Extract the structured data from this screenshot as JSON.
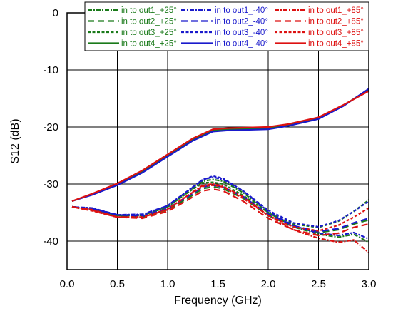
{
  "chart_data": {
    "type": "line",
    "title": "",
    "xlabel": "Frequency (GHz)",
    "ylabel": "S12 (dB)",
    "xlim": [
      0,
      3
    ],
    "ylim": [
      -45,
      0
    ],
    "x_ticks": [
      0,
      0.5,
      1,
      1.5,
      2,
      2.5,
      3
    ],
    "x_tick_labels": [
      "0.0",
      "0.5",
      "1.0",
      "1.5",
      "2.0",
      "2.5",
      "3.0"
    ],
    "y_ticks": [
      0,
      -10,
      -20,
      -30,
      -40
    ],
    "y_tick_labels": [
      "0",
      "-10",
      "-20",
      "-30",
      "-40"
    ],
    "grid": true,
    "legend_position": "top-right",
    "series": [
      {
        "name": "in to out1_+25°",
        "color": "#1a7a1a",
        "dash": "dot-dash",
        "x": [
          0.05,
          0.25,
          0.5,
          0.75,
          1.0,
          1.2,
          1.35,
          1.45,
          1.55,
          1.75,
          2.0,
          2.25,
          2.5,
          2.7,
          2.85,
          3.0
        ],
        "y": [
          -34,
          -34.3,
          -35.5,
          -35.5,
          -34,
          -31.5,
          -29.5,
          -29.2,
          -29.5,
          -31.5,
          -35,
          -37.5,
          -38.8,
          -39.3,
          -38.8,
          -40.2
        ]
      },
      {
        "name": "in to out2_+25°",
        "color": "#1a7a1a",
        "dash": "long-dash",
        "x": [
          0.05,
          0.25,
          0.5,
          0.75,
          1.0,
          1.2,
          1.35,
          1.45,
          1.55,
          1.75,
          2.0,
          2.25,
          2.5,
          2.7,
          2.85,
          3.0
        ],
        "y": [
          -34,
          -34.4,
          -35.5,
          -35.8,
          -34.5,
          -32.5,
          -30.8,
          -30.5,
          -30.8,
          -32.5,
          -35.5,
          -37.5,
          -38.5,
          -38,
          -37,
          -36.3
        ]
      },
      {
        "name": "in to out3_+25°",
        "color": "#1a7a1a",
        "dash": "dash",
        "x": [
          0.05,
          0.25,
          0.5,
          0.75,
          1.0,
          1.2,
          1.35,
          1.45,
          1.55,
          1.75,
          2.0,
          2.25,
          2.5,
          2.7,
          2.85,
          3.0
        ],
        "y": [
          -34,
          -34.5,
          -35.5,
          -35.5,
          -34,
          -31.5,
          -29.8,
          -29.7,
          -30,
          -32,
          -35,
          -37,
          -37.6,
          -36.5,
          -34.8,
          -32.8
        ]
      },
      {
        "name": "in to out4_+25°",
        "color": "#1a7a1a",
        "dash": "solid",
        "x": [
          0.05,
          0.25,
          0.5,
          0.75,
          1.0,
          1.25,
          1.45,
          1.6,
          2.0,
          2.2,
          2.5,
          2.75,
          3.0
        ],
        "y": [
          -33,
          -31.8,
          -30,
          -27.8,
          -25,
          -22.2,
          -20.6,
          -20.4,
          -20.2,
          -19.6,
          -18.5,
          -16.2,
          -13.4
        ]
      },
      {
        "name": "in to out1_-40°",
        "color": "#1a1acc",
        "dash": "dot-dash",
        "x": [
          0.05,
          0.25,
          0.5,
          0.75,
          1.0,
          1.2,
          1.35,
          1.45,
          1.55,
          1.75,
          2.0,
          2.25,
          2.5,
          2.7,
          2.85,
          3.0
        ],
        "y": [
          -34,
          -34.2,
          -35.4,
          -35.3,
          -33.8,
          -31.2,
          -29.2,
          -28.8,
          -29.2,
          -31.2,
          -34.8,
          -37.3,
          -38.6,
          -39,
          -38.5,
          -39.6
        ]
      },
      {
        "name": "in to out2_-40°",
        "color": "#1a1acc",
        "dash": "long-dash",
        "x": [
          0.05,
          0.25,
          0.5,
          0.75,
          1.0,
          1.2,
          1.35,
          1.45,
          1.55,
          1.75,
          2.0,
          2.25,
          2.5,
          2.7,
          2.85,
          3.0
        ],
        "y": [
          -34,
          -34.3,
          -35.4,
          -35.6,
          -34.3,
          -32.2,
          -30.5,
          -30.2,
          -30.5,
          -32.2,
          -35.3,
          -37.3,
          -38.3,
          -37.8,
          -36.8,
          -36
        ]
      },
      {
        "name": "in to out3_-40°",
        "color": "#1a1acc",
        "dash": "dash",
        "x": [
          0.05,
          0.25,
          0.5,
          0.75,
          1.0,
          1.2,
          1.35,
          1.45,
          1.55,
          1.75,
          2.0,
          2.25,
          2.5,
          2.7,
          2.85,
          3.0
        ],
        "y": [
          -34,
          -34.4,
          -35.4,
          -35.4,
          -33.8,
          -31.2,
          -29.3,
          -28.6,
          -29,
          -31.2,
          -34.6,
          -36.8,
          -37.5,
          -36.4,
          -34.8,
          -33
        ]
      },
      {
        "name": "in to out4_-40°",
        "color": "#1a1acc",
        "dash": "solid",
        "x": [
          0.05,
          0.25,
          0.5,
          0.75,
          1.0,
          1.25,
          1.45,
          1.6,
          2.0,
          2.2,
          2.5,
          2.75,
          3.0
        ],
        "y": [
          -33,
          -31.9,
          -30.2,
          -28,
          -25.2,
          -22.4,
          -20.8,
          -20.6,
          -20.4,
          -19.8,
          -18.6,
          -16.3,
          -13.3
        ]
      },
      {
        "name": "in to out1_+85°",
        "color": "#dd1111",
        "dash": "dot-dash",
        "x": [
          0.05,
          0.25,
          0.5,
          0.75,
          1.0,
          1.2,
          1.35,
          1.45,
          1.55,
          1.75,
          2.0,
          2.25,
          2.5,
          2.7,
          2.85,
          3.0
        ],
        "y": [
          -34,
          -34.5,
          -35.8,
          -35.8,
          -34.5,
          -32,
          -30.2,
          -30,
          -30.4,
          -32.2,
          -35.5,
          -38,
          -39.5,
          -40.2,
          -39.8,
          -42
        ]
      },
      {
        "name": "in to out2_+85°",
        "color": "#dd1111",
        "dash": "long-dash",
        "x": [
          0.05,
          0.25,
          0.5,
          0.75,
          1.0,
          1.2,
          1.35,
          1.45,
          1.55,
          1.75,
          2.0,
          2.25,
          2.5,
          2.7,
          2.85,
          3.0
        ],
        "y": [
          -34,
          -34.6,
          -35.8,
          -36,
          -34.8,
          -32.8,
          -31.2,
          -30.9,
          -31.2,
          -33,
          -36,
          -38,
          -39,
          -38.6,
          -37.6,
          -37
        ]
      },
      {
        "name": "in to out3_+85°",
        "color": "#dd1111",
        "dash": "dash",
        "x": [
          0.05,
          0.25,
          0.5,
          0.75,
          1.0,
          1.2,
          1.35,
          1.45,
          1.55,
          1.75,
          2.0,
          2.25,
          2.5,
          2.7,
          2.85,
          3.0
        ],
        "y": [
          -34,
          -34.7,
          -35.8,
          -35.8,
          -34.4,
          -32,
          -30.4,
          -30.2,
          -30.5,
          -32.5,
          -35.5,
          -37.5,
          -38.2,
          -37.2,
          -35.8,
          -34.2
        ]
      },
      {
        "name": "in to out4_+85°",
        "color": "#dd1111",
        "dash": "solid",
        "x": [
          0.05,
          0.25,
          0.5,
          0.75,
          1.0,
          1.25,
          1.45,
          1.6,
          2.0,
          2.2,
          2.5,
          2.75,
          3.0
        ],
        "y": [
          -33,
          -31.7,
          -29.9,
          -27.6,
          -24.8,
          -22,
          -20.4,
          -20.2,
          -20,
          -19.5,
          -18.3,
          -16.1,
          -13.7
        ]
      }
    ]
  }
}
